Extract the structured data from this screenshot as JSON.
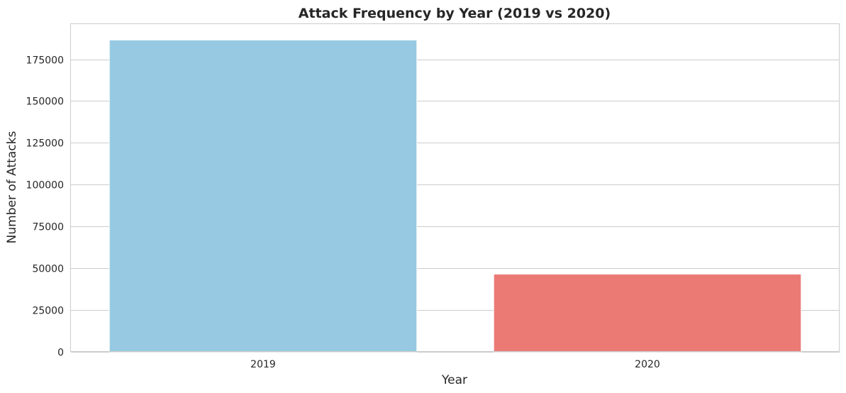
{
  "chart_data": {
    "type": "bar",
    "title": "Attack Frequency by Year (2019 vs 2020)",
    "xlabel": "Year",
    "ylabel": "Number of Attacks",
    "categories": [
      "2019",
      "2020"
    ],
    "values": [
      186500,
      46500
    ],
    "colors": [
      "#97cae2",
      "#eb7a75"
    ],
    "ylim": [
      0,
      196000
    ],
    "yticks": [
      0,
      25000,
      50000,
      75000,
      100000,
      125000,
      150000,
      175000
    ],
    "grid": "horizontal",
    "legend": "none",
    "background": "#ffffff",
    "grid_color": "#cccccc"
  }
}
